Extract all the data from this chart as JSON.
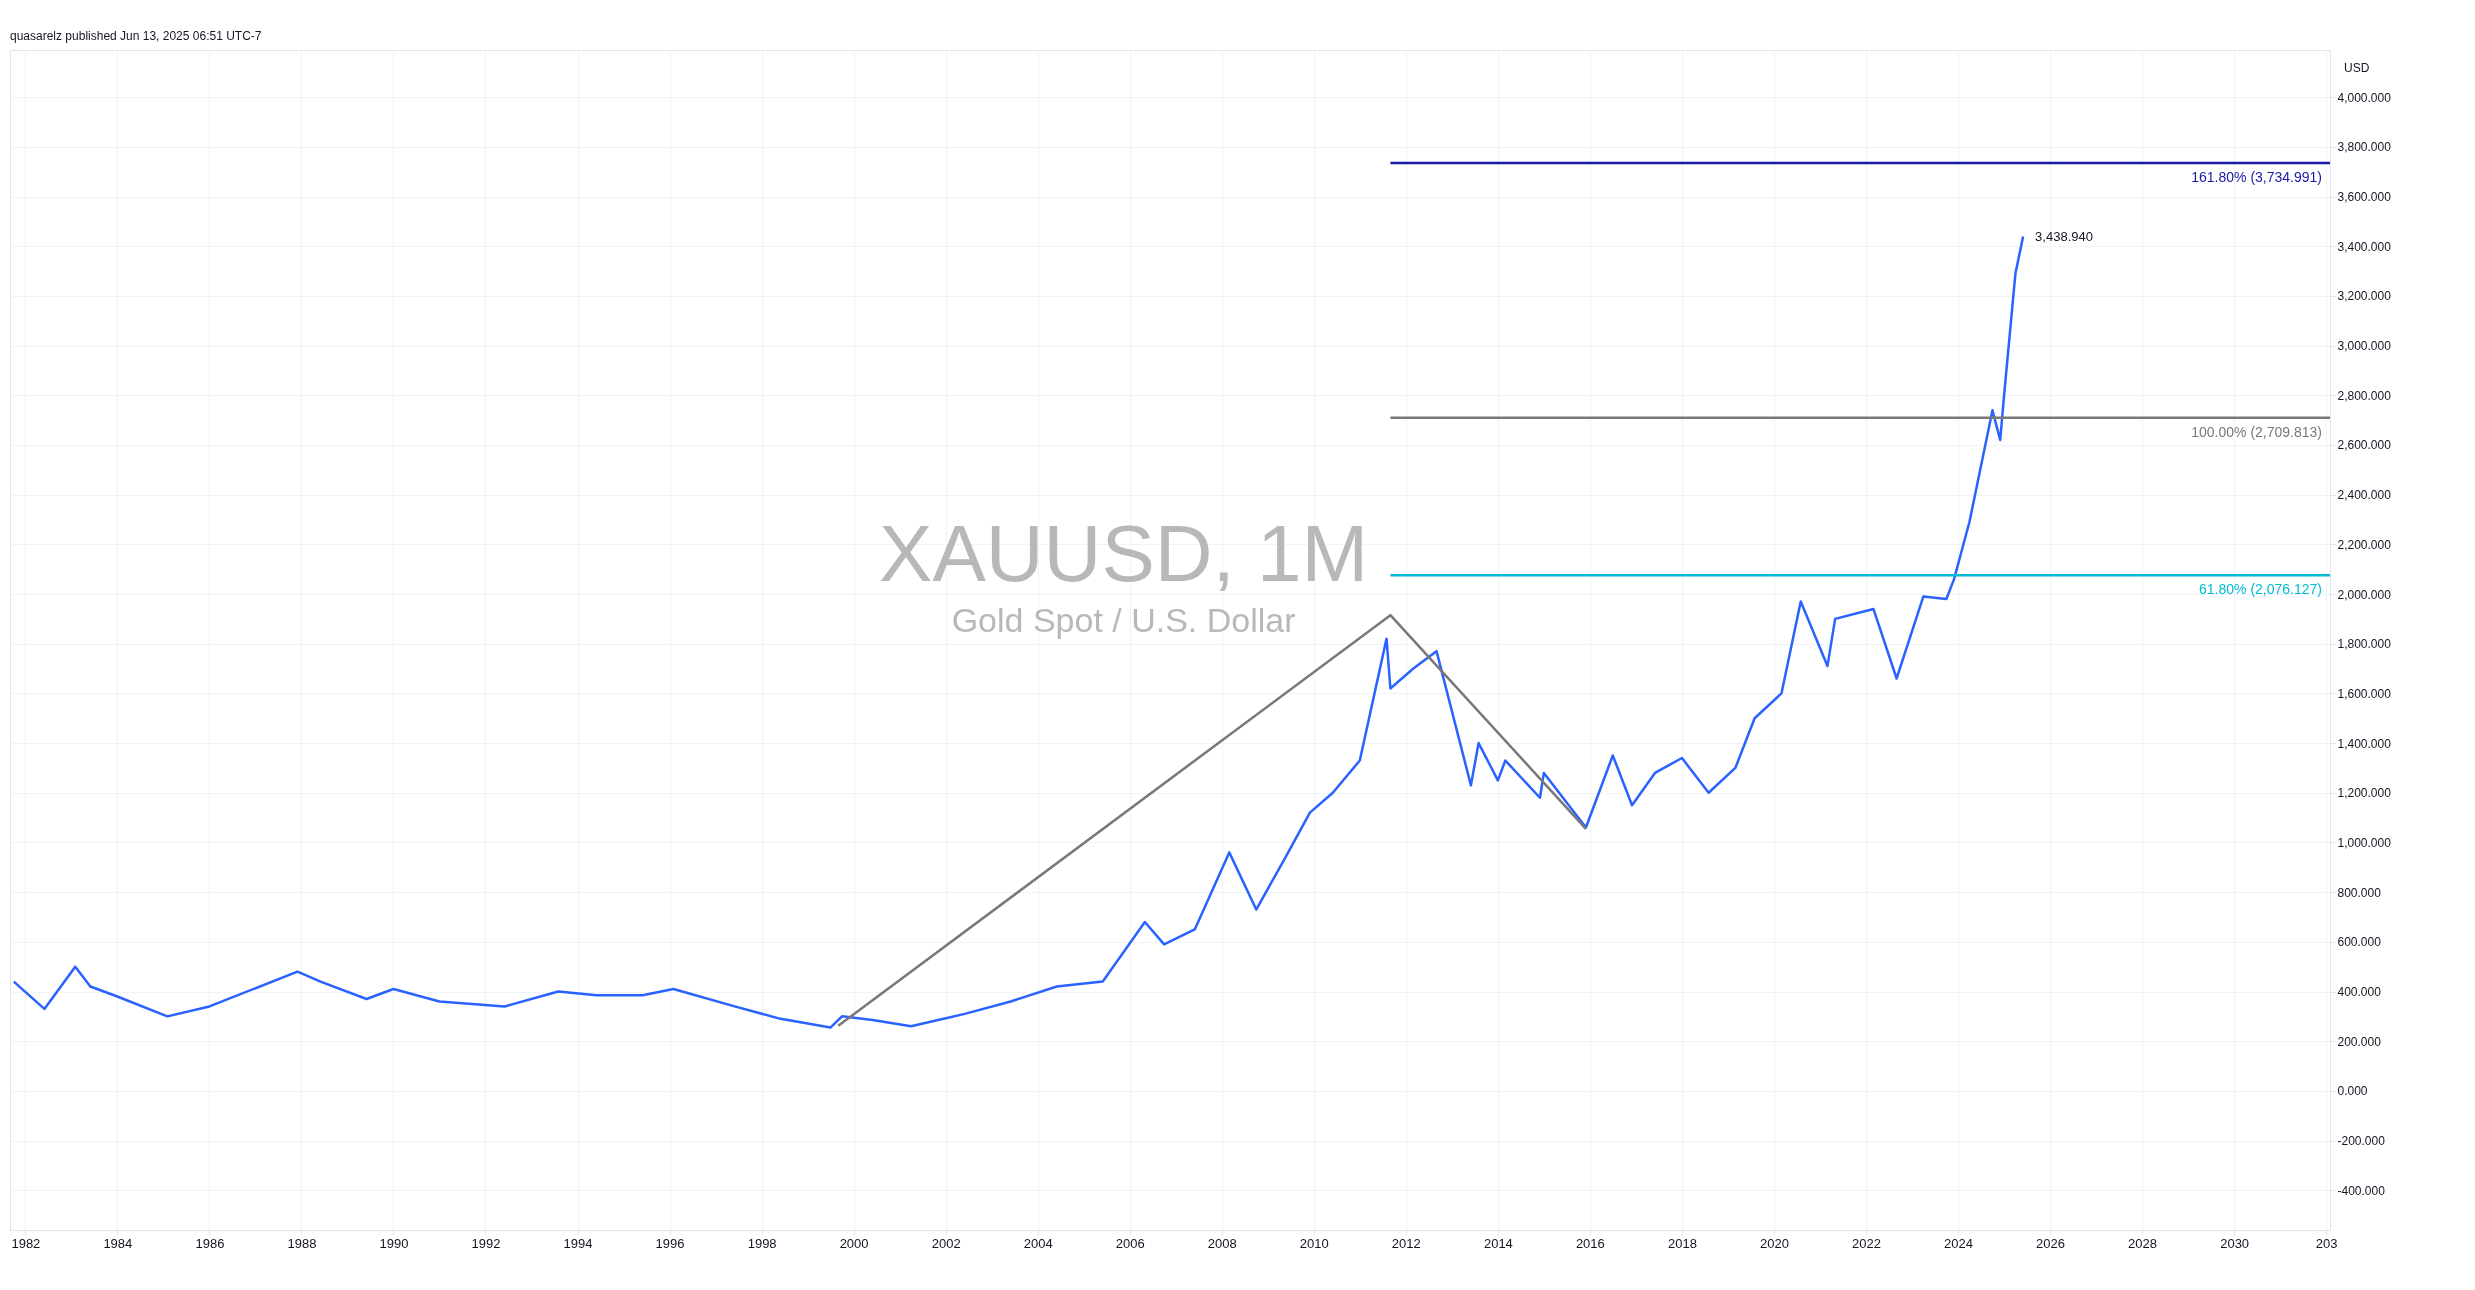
{
  "chart_data": {
    "type": "line",
    "title": "XAUUSD, 1M",
    "subtitle": "Gold Spot / U.S. Dollar",
    "ylabel": "USD",
    "annotations": [
      "quasarelz published Jun 13, 2025 06:51 UTC-7",
      {
        "text": "3,438.940",
        "x": "2025-06",
        "y": 3438.94
      }
    ],
    "xlim": [
      "1981-09",
      "2032-02"
    ],
    "ylim": [
      -560,
      4190
    ],
    "xticks": [
      "1982",
      "1984",
      "1986",
      "1988",
      "1990",
      "1992",
      "1994",
      "1996",
      "1998",
      "2000",
      "2002",
      "2004",
      "2006",
      "2008",
      "2010",
      "2012",
      "2014",
      "2016",
      "2018",
      "2020",
      "2022",
      "2024",
      "2026",
      "2028",
      "2030",
      {
        "value": "2032",
        "label": "203"
      }
    ],
    "yticks": [
      {
        "value": -400,
        "label": "-400.000"
      },
      {
        "value": -200,
        "label": "-200.000"
      },
      {
        "value": 0,
        "label": "0.000"
      },
      {
        "value": 200,
        "label": "200.000"
      },
      {
        "value": 400,
        "label": "400.000"
      },
      {
        "value": 600,
        "label": "600.000"
      },
      {
        "value": 800,
        "label": "800.000"
      },
      {
        "value": 1000,
        "label": "1,000.000"
      },
      {
        "value": 1200,
        "label": "1,200.000"
      },
      {
        "value": 1400,
        "label": "1,400.000"
      },
      {
        "value": 1600,
        "label": "1,600.000"
      },
      {
        "value": 1800,
        "label": "1,800.000"
      },
      {
        "value": 2000,
        "label": "2,000.000"
      },
      {
        "value": 2200,
        "label": "2,200.000"
      },
      {
        "value": 2400,
        "label": "2,400.000"
      },
      {
        "value": 2600,
        "label": "2,600.000"
      },
      {
        "value": 2800,
        "label": "2,800.000"
      },
      {
        "value": 3000,
        "label": "3,000.000"
      },
      {
        "value": 3200,
        "label": "3,200.000"
      },
      {
        "value": 3400,
        "label": "3,400.000"
      },
      {
        "value": 3600,
        "label": "3,600.000"
      },
      {
        "value": 3800,
        "label": "3,800.000"
      },
      {
        "value": 4000,
        "label": "4,000.000"
      }
    ],
    "grid": true,
    "legend": false,
    "series": [
      {
        "color": "#2962ff",
        "x": [
          "1981-10",
          "1982-06",
          "1983-02",
          "1983-06",
          "1984-01",
          "1985-02",
          "1986-01",
          "1987-12",
          "1988-06",
          "1989-06",
          "1990-01",
          "1991-01",
          "1992-06",
          "1993-08",
          "1994-06",
          "1995-06",
          "1996-02",
          "1997-06",
          "1998-06",
          "1999-07",
          "1999-10",
          "2000-06",
          "2001-04",
          "2002-06",
          "2003-06",
          "2004-06",
          "2005-06",
          "2006-05",
          "2006-10",
          "2007-06",
          "2008-03",
          "2008-10",
          "2009-06",
          "2009-12",
          "2010-06",
          "2011-01",
          "2011-08",
          "2011-09",
          "2012-03",
          "2012-09",
          "2013-06",
          "2013-08",
          "2014-01",
          "2014-03",
          "2014-12",
          "2015-01",
          "2015-12",
          "2016-07",
          "2016-12",
          "2017-06",
          "2018-01",
          "2018-08",
          "2019-03",
          "2019-08",
          "2020-03",
          "2020-08",
          "2021-03",
          "2021-05",
          "2022-03",
          "2022-09",
          "2023-04",
          "2023-10",
          "2023-12",
          "2024-04",
          "2024-10",
          "2024-12",
          "2025-01",
          "2025-04",
          "2025-06"
        ],
        "values": [
          440,
          330,
          500,
          420,
          380,
          300,
          340,
          480,
          440,
          370,
          410,
          360,
          340,
          400,
          385,
          385,
          410,
          340,
          290,
          255,
          300,
          285,
          260,
          310,
          360,
          420,
          440,
          680,
          590,
          650,
          960,
          730,
          950,
          1120,
          1200,
          1330,
          1820,
          1620,
          1700,
          1770,
          1230,
          1400,
          1250,
          1330,
          1180,
          1280,
          1060,
          1350,
          1150,
          1280,
          1340,
          1200,
          1300,
          1500,
          1600,
          1970,
          1710,
          1900,
          1940,
          1660,
          1990,
          1980,
          2060,
          2290,
          2740,
          2620,
          2800,
          3290,
          3438.94
        ]
      },
      {
        "color": "#787878",
        "x": [
          "1999-09",
          "2011-09",
          "2015-12"
        ],
        "values": [
          262,
          1915,
          1055
        ]
      },
      {
        "name": "161.80% (3,734.991)",
        "color": "#1a1aa6",
        "x": [
          "2011-09",
          "2032-02"
        ],
        "values": [
          3734.991,
          3734.991
        ]
      },
      {
        "name": "100.00% (2,709.813)",
        "color": "#787878",
        "x": [
          "2011-09",
          "2032-02"
        ],
        "values": [
          2709.813,
          2709.813
        ]
      },
      {
        "name": "61.80% (2,076.127)",
        "color": "#00bcd4",
        "x": [
          "2011-09",
          "2032-02"
        ],
        "values": [
          2076.127,
          2076.127
        ]
      }
    ]
  }
}
